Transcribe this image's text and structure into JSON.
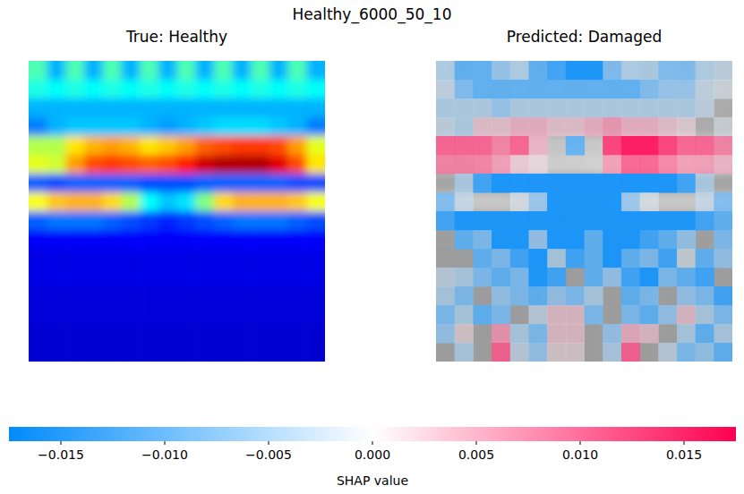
{
  "chart_data": {
    "type": "heatmap",
    "title": "Healthy_6000_50_10",
    "tick_labels": false,
    "panels": [
      {
        "title": "True: Healthy",
        "clim": [
          0,
          1
        ],
        "cells": [
          [
            0.45,
            0.3,
            0.45,
            0.3,
            0.45,
            0.3,
            0.45,
            0.3,
            0.45,
            0.3,
            0.45,
            0.3,
            0.45,
            0.3,
            0.45,
            0.3
          ],
          [
            0.4,
            0.38,
            0.4,
            0.38,
            0.4,
            0.38,
            0.4,
            0.38,
            0.4,
            0.38,
            0.4,
            0.38,
            0.4,
            0.38,
            0.4,
            0.38
          ],
          [
            0.3,
            0.3,
            0.3,
            0.3,
            0.3,
            0.3,
            0.3,
            0.3,
            0.3,
            0.3,
            0.3,
            0.3,
            0.3,
            0.3,
            0.3,
            0.3
          ],
          [
            0.25,
            0.3,
            0.32,
            0.32,
            0.32,
            0.32,
            0.3,
            0.28,
            0.3,
            0.32,
            0.34,
            0.34,
            0.34,
            0.32,
            0.3,
            0.25
          ],
          [
            0.55,
            0.55,
            0.65,
            0.7,
            0.72,
            0.7,
            0.65,
            0.68,
            0.72,
            0.78,
            0.8,
            0.82,
            0.82,
            0.8,
            0.72,
            0.6
          ],
          [
            0.6,
            0.58,
            0.72,
            0.8,
            0.82,
            0.8,
            0.78,
            0.8,
            0.85,
            0.92,
            0.95,
            0.95,
            0.95,
            0.9,
            0.8,
            0.65
          ],
          [
            0.22,
            0.2,
            0.22,
            0.22,
            0.22,
            0.22,
            0.2,
            0.2,
            0.2,
            0.22,
            0.22,
            0.22,
            0.22,
            0.22,
            0.2,
            0.2
          ],
          [
            0.62,
            0.68,
            0.7,
            0.7,
            0.66,
            0.55,
            0.38,
            0.32,
            0.35,
            0.5,
            0.66,
            0.7,
            0.7,
            0.7,
            0.68,
            0.62
          ],
          [
            0.22,
            0.24,
            0.24,
            0.24,
            0.22,
            0.2,
            0.18,
            0.16,
            0.18,
            0.2,
            0.22,
            0.24,
            0.24,
            0.24,
            0.22,
            0.2
          ],
          [
            0.12,
            0.12,
            0.12,
            0.12,
            0.12,
            0.12,
            0.12,
            0.12,
            0.12,
            0.12,
            0.12,
            0.12,
            0.12,
            0.12,
            0.12,
            0.12
          ],
          [
            0.1,
            0.1,
            0.1,
            0.1,
            0.1,
            0.1,
            0.1,
            0.1,
            0.1,
            0.1,
            0.1,
            0.1,
            0.1,
            0.1,
            0.1,
            0.1
          ],
          [
            0.1,
            0.1,
            0.1,
            0.1,
            0.1,
            0.1,
            0.1,
            0.1,
            0.1,
            0.1,
            0.1,
            0.1,
            0.1,
            0.1,
            0.1,
            0.1
          ],
          [
            0.09,
            0.09,
            0.09,
            0.09,
            0.09,
            0.09,
            0.09,
            0.09,
            0.09,
            0.09,
            0.09,
            0.09,
            0.09,
            0.09,
            0.09,
            0.09
          ],
          [
            0.09,
            0.09,
            0.09,
            0.09,
            0.09,
            0.09,
            0.09,
            0.09,
            0.09,
            0.09,
            0.09,
            0.09,
            0.09,
            0.09,
            0.09,
            0.09
          ],
          [
            0.08,
            0.08,
            0.08,
            0.08,
            0.08,
            0.08,
            0.08,
            0.08,
            0.08,
            0.08,
            0.08,
            0.08,
            0.08,
            0.08,
            0.08,
            0.08
          ],
          [
            0.08,
            0.08,
            0.08,
            0.08,
            0.08,
            0.08,
            0.08,
            0.08,
            0.08,
            0.08,
            0.08,
            0.08,
            0.08,
            0.08,
            0.08,
            0.08
          ]
        ]
      },
      {
        "title": "Predicted: Damaged",
        "cells": [
          [
            -0.006,
            -0.012,
            -0.012,
            -0.008,
            -0.006,
            -0.012,
            -0.014,
            -0.016,
            -0.016,
            -0.01,
            -0.006,
            -0.006,
            -0.01,
            -0.01,
            -0.006,
            -0.004
          ],
          [
            -0.004,
            -0.01,
            -0.012,
            -0.012,
            -0.012,
            -0.012,
            -0.012,
            -0.012,
            -0.012,
            -0.012,
            -0.012,
            -0.01,
            -0.008,
            -0.008,
            -0.004,
            -0.002
          ],
          [
            -0.006,
            -0.006,
            -0.006,
            -0.008,
            -0.006,
            -0.006,
            -0.006,
            -0.006,
            -0.006,
            -0.006,
            -0.006,
            -0.006,
            -0.006,
            -0.006,
            -0.004,
            0.001
          ],
          [
            -0.004,
            -0.006,
            0.004,
            0.004,
            0.006,
            0.006,
            0.004,
            0.004,
            0.006,
            0.008,
            0.006,
            0.006,
            0.004,
            0.002,
            0.001,
            -0.002
          ],
          [
            0.012,
            0.012,
            0.012,
            0.01,
            0.012,
            0.006,
            0.001,
            -0.012,
            0.001,
            0.014,
            0.016,
            0.016,
            0.014,
            0.012,
            0.012,
            0.01
          ],
          [
            0.01,
            0.01,
            0.01,
            0.008,
            0.004,
            0.002,
            0.001,
            0.001,
            0.001,
            0.008,
            0.012,
            0.012,
            0.01,
            0.008,
            0.008,
            0.006
          ],
          [
            0.001,
            -0.006,
            -0.014,
            -0.016,
            -0.016,
            -0.016,
            -0.016,
            -0.016,
            -0.016,
            -0.016,
            -0.016,
            -0.016,
            -0.016,
            -0.014,
            -0.006,
            0.001
          ],
          [
            -0.01,
            -0.004,
            -0.001,
            -0.001,
            -0.002,
            -0.008,
            -0.016,
            -0.016,
            -0.016,
            -0.016,
            -0.008,
            -0.002,
            -0.001,
            -0.001,
            -0.004,
            -0.01
          ],
          [
            -0.014,
            -0.016,
            -0.016,
            -0.016,
            -0.016,
            -0.016,
            -0.016,
            -0.016,
            -0.016,
            -0.016,
            -0.016,
            -0.016,
            -0.016,
            -0.016,
            -0.014,
            -0.012
          ],
          [
            0.001,
            -0.012,
            -0.01,
            -0.016,
            -0.016,
            -0.008,
            -0.016,
            -0.016,
            -0.012,
            -0.016,
            -0.016,
            -0.014,
            -0.012,
            -0.008,
            0.001,
            -0.01
          ],
          [
            0.001,
            0.001,
            -0.012,
            -0.01,
            -0.014,
            -0.016,
            -0.006,
            -0.014,
            -0.012,
            -0.016,
            -0.012,
            -0.01,
            -0.014,
            -0.002,
            -0.012,
            -0.008
          ],
          [
            -0.004,
            -0.006,
            -0.01,
            -0.012,
            -0.01,
            -0.016,
            -0.014,
            0.001,
            -0.012,
            -0.008,
            -0.014,
            -0.016,
            -0.01,
            -0.012,
            -0.014,
            0.001
          ],
          [
            -0.006,
            -0.01,
            0.001,
            -0.008,
            -0.01,
            -0.012,
            -0.008,
            -0.01,
            -0.006,
            0.001,
            -0.012,
            -0.01,
            0.001,
            -0.008,
            -0.01,
            -0.014
          ],
          [
            -0.01,
            -0.006,
            -0.012,
            -0.01,
            0.001,
            -0.004,
            0.004,
            0.004,
            -0.01,
            0.001,
            -0.01,
            -0.012,
            -0.008,
            0.004,
            -0.006,
            -0.01
          ],
          [
            -0.008,
            0.002,
            0.001,
            0.008,
            -0.006,
            -0.01,
            0.004,
            0.004,
            0.001,
            -0.008,
            0.006,
            0.004,
            0.001,
            -0.006,
            -0.012,
            -0.006
          ],
          [
            0.001,
            -0.006,
            0.001,
            0.012,
            -0.004,
            -0.008,
            0.002,
            0.002,
            0.001,
            -0.006,
            0.012,
            0.001,
            -0.004,
            -0.01,
            -0.008,
            -0.012
          ]
        ]
      }
    ],
    "colorbar": {
      "label": "SHAP value",
      "range": [
        -0.0175,
        0.0175
      ],
      "ticks": [
        {
          "value": -0.015,
          "label": "−0.015"
        },
        {
          "value": -0.01,
          "label": "−0.010"
        },
        {
          "value": -0.005,
          "label": "−0.005"
        },
        {
          "value": 0,
          "label": "0.000"
        },
        {
          "value": 0.005,
          "label": "0.005"
        },
        {
          "value": 0.01,
          "label": "0.010"
        },
        {
          "value": 0.015,
          "label": "0.015"
        }
      ]
    }
  }
}
